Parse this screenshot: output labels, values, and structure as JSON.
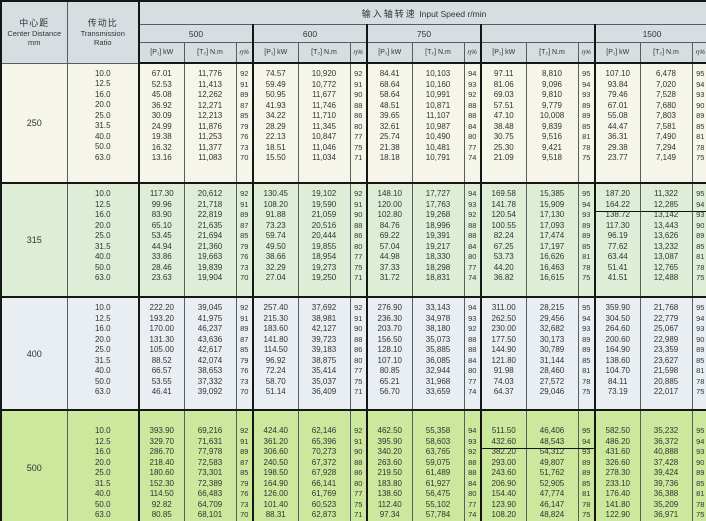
{
  "table": {
    "corner": {
      "center_distance_zh": "中心距",
      "center_distance_en": "Center Distance",
      "center_distance_unit": "mm",
      "ratio_zh": "传动比",
      "ratio_en": "Transmission",
      "ratio_en2": "Ratio"
    },
    "input_speed_zh": "输入轴转速",
    "input_speed_en": "Input Speed r/min",
    "speeds": [
      "500",
      "600",
      "750",
      "",
      "1500"
    ],
    "subcols": [
      "[P₁] kW",
      "[T₂] N.m",
      "η%"
    ],
    "ratios": [
      "10.0",
      "12.5",
      "16.0",
      "20.0",
      "25.0",
      "31.5",
      "40.0",
      "50.0",
      "63.0"
    ],
    "groups": [
      {
        "center_distance": "250",
        "speeds": [
          {
            "p": [
              "67.01",
              "52.53",
              "45.08",
              "36.92",
              "30.09",
              "24.99",
              "19.38",
              "16.32",
              "13.16"
            ],
            "t": [
              "11,776",
              "11,413",
              "12,262",
              "12,271",
              "12,213",
              "11,876",
              "11,253",
              "11,377",
              "11,083"
            ],
            "eta": [
              "92",
              "91",
              "89",
              "87",
              "85",
              "79",
              "76",
              "73",
              "70"
            ]
          },
          {
            "p": [
              "74.57",
              "59.49",
              "50.95",
              "41.93",
              "34.22",
              "28.29",
              "22.13",
              "18.51",
              "15.50"
            ],
            "t": [
              "10,920",
              "10,772",
              "11,677",
              "11,746",
              "11,710",
              "11,345",
              "10,847",
              "11,046",
              "11,034"
            ],
            "eta": [
              "92",
              "91",
              "90",
              "88",
              "86",
              "80",
              "77",
              "75",
              "71"
            ]
          },
          {
            "p": [
              "84.41",
              "68.64",
              "58.64",
              "48.51",
              "39.65",
              "32.61",
              "25.74",
              "21.38",
              "18.18"
            ],
            "t": [
              "10,103",
              "10,160",
              "10,991",
              "10,871",
              "11,107",
              "10,987",
              "10,490",
              "10,481",
              "10,791"
            ],
            "eta": [
              "94",
              "93",
              "92",
              "88",
              "88",
              "84",
              "80",
              "77",
              "74"
            ]
          },
          {
            "p": [
              "97.11",
              "81.06",
              "69.03",
              "57.51",
              "47.10",
              "38.48",
              "30.75",
              "25.30",
              "21.09"
            ],
            "t": [
              "8,810",
              "9,096",
              "9,810",
              "9,779",
              "10,008",
              "9,839",
              "9,516",
              "9,421",
              "9,518"
            ],
            "eta": [
              "95",
              "94",
              "93",
              "89",
              "89",
              "85",
              "81",
              "78",
              "75"
            ]
          },
          {
            "p": [
              "107.10",
              "93.84",
              "79.46",
              "67.01",
              "55.08",
              "44.47",
              "36.31",
              "29.38",
              "23.77"
            ],
            "t": [
              "6,478",
              "7,020",
              "7,528",
              "7,680",
              "7,803",
              "7,581",
              "7,490",
              "7,294",
              "7,149"
            ],
            "eta": [
              "95",
              "94",
              "93",
              "90",
              "89",
              "85",
              "81",
              "78",
              "75"
            ]
          }
        ]
      },
      {
        "center_distance": "315",
        "speeds": [
          {
            "p": [
              "117.30",
              "99.96",
              "83.90",
              "65.10",
              "53.45",
              "44.94",
              "33.86",
              "28.46",
              "23.63"
            ],
            "t": [
              "20,612",
              "21,718",
              "22,819",
              "21,635",
              "21,694",
              "21,360",
              "19,663",
              "19,839",
              "19,904"
            ],
            "eta": [
              "92",
              "91",
              "89",
              "87",
              "85",
              "79",
              "76",
              "73",
              "70"
            ]
          },
          {
            "p": [
              "130.45",
              "108.20",
              "91.88",
              "73.23",
              "59.74",
              "49.50",
              "38.66",
              "32.29",
              "27.04"
            ],
            "t": [
              "19,102",
              "19,590",
              "21,059",
              "20,516",
              "20,444",
              "19,855",
              "18,954",
              "19,273",
              "19,250"
            ],
            "eta": [
              "92",
              "91",
              "90",
              "88",
              "86",
              "80",
              "77",
              "75",
              "71"
            ]
          },
          {
            "p": [
              "148.10",
              "120.00",
              "102.80",
              "84.76",
              "69.22",
              "57.04",
              "44.98",
              "37.33",
              "31.72"
            ],
            "t": [
              "17,727",
              "17,763",
              "19,268",
              "18,996",
              "19,391",
              "19,217",
              "18,330",
              "18,298",
              "18,831"
            ],
            "eta": [
              "94",
              "93",
              "92",
              "88",
              "88",
              "84",
              "80",
              "77",
              "74"
            ]
          },
          {
            "p": [
              "169.58",
              "141.78",
              "120.54",
              "100.55",
              "82.24",
              "67.25",
              "53.73",
              "44.20",
              "36.82"
            ],
            "t": [
              "15,385",
              "15,909",
              "17,130",
              "17,093",
              "17,474",
              "17,197",
              "16,626",
              "16,463",
              "16,615"
            ],
            "eta": [
              "95",
              "94",
              "93",
              "89",
              "89",
              "85",
              "81",
              "78",
              "75"
            ]
          },
          {
            "p": [
              "187.20",
              "164.22",
              "138.72",
              "117.30",
              "96.19",
              "77.62",
              "63.44",
              "51.41",
              "41.51"
            ],
            "t": [
              "11,322",
              "12,285",
              "13,142",
              "13,443",
              "13,626",
              "13,232",
              "13,087",
              "12,765",
              "12,488"
            ],
            "eta": [
              "95",
              "94",
              "93",
              "90",
              "89",
              "85",
              "81",
              "78",
              "75"
            ]
          }
        ]
      },
      {
        "center_distance": "400",
        "speeds": [
          {
            "p": [
              "222.20",
              "193.20",
              "170.00",
              "131.30",
              "105.00",
              "88.52",
              "66.57",
              "53.55",
              "46.41"
            ],
            "t": [
              "39,045",
              "41,975",
              "46,237",
              "43,636",
              "42,617",
              "42,074",
              "38,653",
              "37,332",
              "39,092"
            ],
            "eta": [
              "92",
              "91",
              "89",
              "87",
              "85",
              "79",
              "76",
              "73",
              "70"
            ]
          },
          {
            "p": [
              "257.40",
              "215.30",
              "183.60",
              "141.80",
              "114.50",
              "96.92",
              "72.24",
              "58.70",
              "51.14"
            ],
            "t": [
              "37,692",
              "38,981",
              "42,127",
              "39,723",
              "39,183",
              "38,875",
              "35,414",
              "35,037",
              "36,409"
            ],
            "eta": [
              "92",
              "91",
              "90",
              "88",
              "86",
              "80",
              "77",
              "75",
              "71"
            ]
          },
          {
            "p": [
              "276.90",
              "236.30",
              "203.70",
              "156.50",
              "128.10",
              "107.10",
              "80.85",
              "65.21",
              "56.70"
            ],
            "t": [
              "33,143",
              "34,978",
              "38,180",
              "35,073",
              "35,885",
              "36,085",
              "32,944",
              "31,968",
              "33,659"
            ],
            "eta": [
              "94",
              "93",
              "92",
              "88",
              "88",
              "84",
              "80",
              "77",
              "74"
            ]
          },
          {
            "p": [
              "311.00",
              "262.50",
              "230.00",
              "177.50",
              "144.90",
              "121.80",
              "91.98",
              "74.03",
              "64.37"
            ],
            "t": [
              "28,215",
              "29,456",
              "32,682",
              "30,173",
              "30,789",
              "31,144",
              "28,460",
              "27,572",
              "29,046"
            ],
            "eta": [
              "95",
              "94",
              "93",
              "89",
              "89",
              "85",
              "81",
              "78",
              "75"
            ]
          },
          {
            "p": [
              "359.90",
              "304.50",
              "264.60",
              "200.60",
              "164.90",
              "138.60",
              "104.70",
              "84.11",
              "73.19"
            ],
            "t": [
              "21,768",
              "22,779",
              "25,067",
              "22,989",
              "23,359",
              "23,627",
              "21,598",
              "20,885",
              "22,017"
            ],
            "eta": [
              "95",
              "94",
              "93",
              "90",
              "89",
              "85",
              "81",
              "78",
              "75"
            ]
          }
        ]
      },
      {
        "center_distance": "500",
        "speeds": [
          {
            "p": [
              "393.90",
              "329.70",
              "286.70",
              "218.40",
              "180.60",
              "152.30",
              "114.50",
              "92.82",
              "80.85"
            ],
            "t": [
              "69,216",
              "71,631",
              "77,978",
              "72,583",
              "73,301",
              "72,389",
              "66,483",
              "64,709",
              "68,101"
            ],
            "eta": [
              "92",
              "91",
              "89",
              "87",
              "85",
              "79",
              "76",
              "73",
              "70"
            ]
          },
          {
            "p": [
              "424.40",
              "361.20",
              "306.60",
              "240.50",
              "198.50",
              "164.90",
              "126.00",
              "101.40",
              "88.31"
            ],
            "t": [
              "62,146",
              "65,396",
              "70,273",
              "67,372",
              "67,928",
              "66,141",
              "61,769",
              "60,523",
              "62,873"
            ],
            "eta": [
              "92",
              "91",
              "90",
              "88",
              "86",
              "80",
              "77",
              "75",
              "71"
            ]
          },
          {
            "p": [
              "462.50",
              "395.90",
              "340.20",
              "263.60",
              "219.50",
              "183.80",
              "138.60",
              "112.40",
              "97.34"
            ],
            "t": [
              "55,358",
              "58,603",
              "63,765",
              "59,075",
              "61,489",
              "61,927",
              "56,475",
              "55,102",
              "57,784"
            ],
            "eta": [
              "94",
              "93",
              "92",
              "88",
              "88",
              "84",
              "80",
              "77",
              "74"
            ]
          },
          {
            "p": [
              "511.50",
              "432.60",
              "382.20",
              "293.00",
              "243.60",
              "206.90",
              "154.40",
              "123.90",
              "108.20"
            ],
            "t": [
              "46,406",
              "48,543",
              "54,312",
              "49,807",
              "51,762",
              "52,905",
              "47,774",
              "46,147",
              "48,824"
            ],
            "eta": [
              "95",
              "94",
              "93",
              "89",
              "89",
              "85",
              "81",
              "78",
              "75"
            ]
          },
          {
            "p": [
              "582.50",
              "486.20",
              "431.60",
              "326.60",
              "278.30",
              "233.10",
              "176.40",
              "141.80",
              "122.90"
            ],
            "t": [
              "35,232",
              "36,372",
              "40,888",
              "37,428",
              "39,424",
              "39,736",
              "36,388",
              "35,209",
              "36,971"
            ],
            "eta": [
              "95",
              "94",
              "93",
              "90",
              "89",
              "85",
              "81",
              "78",
              "75"
            ]
          }
        ]
      }
    ],
    "highlights": [
      {
        "group": 1,
        "speed": 4,
        "row_start": 0,
        "row_count": 2
      },
      {
        "group": 3,
        "speed": 3,
        "row_start": 0,
        "row_count": 2
      }
    ]
  },
  "colors": {
    "header_bg": "#d6dee2",
    "group_bgs": [
      "#f5f5ea",
      "#deeed6",
      "#e9eef3",
      "#cbe89c"
    ],
    "grid_line": "#555e60",
    "heavy_line": "#161616",
    "text": "#333333"
  }
}
